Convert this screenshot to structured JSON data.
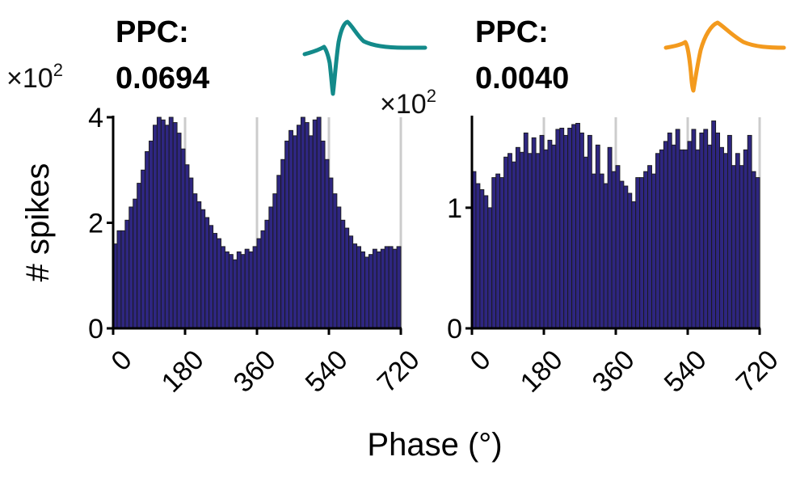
{
  "colors": {
    "bar_fill": "#2E2680",
    "bar_edge": "#1a1a1a",
    "grid": "#cccccc",
    "waveform_left": "#138A8A",
    "waveform_right": "#F39A1E"
  },
  "shared": {
    "xlabel": "Phase (°)",
    "ylabel": "# spikes"
  },
  "panels": [
    {
      "ppc_label": "PPC:",
      "ppc_value": "0.0694",
      "multiplier_base": "×10",
      "multiplier_exp": "2",
      "waveform_icon": "spike-waveform-teal-icon"
    },
    {
      "ppc_label": "PPC:",
      "ppc_value": "0.0040",
      "multiplier_base": "×10",
      "multiplier_exp": "2",
      "waveform_icon": "spike-waveform-orange-icon"
    }
  ],
  "chart_data": [
    {
      "type": "bar",
      "xlabel": "Phase (°)",
      "ylabel": "# spikes",
      "y_multiplier": "×10^2",
      "xlim": [
        0,
        720
      ],
      "ylim": [
        0,
        4
      ],
      "xticks": [
        0,
        180,
        360,
        540,
        720
      ],
      "yticks": [
        0,
        2,
        4
      ],
      "grid_x": [
        180,
        360,
        540,
        720
      ],
      "bin_width": 10,
      "values": [
        1.6,
        1.85,
        1.85,
        2.05,
        2.3,
        2.45,
        2.75,
        3.0,
        3.35,
        3.55,
        3.85,
        4.0,
        3.95,
        3.85,
        4.0,
        3.9,
        3.7,
        3.4,
        3.1,
        2.85,
        2.55,
        2.4,
        2.25,
        2.1,
        1.95,
        1.8,
        1.7,
        1.55,
        1.45,
        1.4,
        1.3,
        1.45,
        1.4,
        1.5,
        1.45,
        1.55,
        1.7,
        1.85,
        2.05,
        2.3,
        2.55,
        2.9,
        3.2,
        3.55,
        3.75,
        3.65,
        3.85,
        4.0,
        3.9,
        3.65,
        3.95,
        4.0,
        3.55,
        3.2,
        2.85,
        2.55,
        2.3,
        2.05,
        1.9,
        1.75,
        1.6,
        1.55,
        1.45,
        1.35,
        1.4,
        1.5,
        1.45,
        1.5,
        1.55,
        1.55,
        1.5,
        1.55
      ]
    },
    {
      "type": "bar",
      "xlabel": "Phase (°)",
      "ylabel": "",
      "y_multiplier": "×10^2",
      "xlim": [
        0,
        720
      ],
      "ylim": [
        0,
        1.75
      ],
      "xticks": [
        0,
        180,
        360,
        540,
        720
      ],
      "yticks": [
        0,
        1
      ],
      "grid_x": [
        180,
        360,
        540,
        720
      ],
      "bin_width": 10,
      "values": [
        1.3,
        1.2,
        1.15,
        1.1,
        1.0,
        1.25,
        1.28,
        1.25,
        1.42,
        1.45,
        1.38,
        1.5,
        1.46,
        1.62,
        1.45,
        1.58,
        1.45,
        1.6,
        1.48,
        1.56,
        1.52,
        1.65,
        1.66,
        1.6,
        1.66,
        1.69,
        1.7,
        1.62,
        1.42,
        1.6,
        1.28,
        1.52,
        1.28,
        1.2,
        1.5,
        1.3,
        1.35,
        1.22,
        1.18,
        1.12,
        1.05,
        1.25,
        1.25,
        1.3,
        1.35,
        1.28,
        1.45,
        1.48,
        1.55,
        1.62,
        1.52,
        1.65,
        1.48,
        1.48,
        1.55,
        1.65,
        1.48,
        1.62,
        1.65,
        1.52,
        1.72,
        1.62,
        1.5,
        1.45,
        1.6,
        1.35,
        1.45,
        1.35,
        1.48,
        1.6,
        1.3,
        1.25
      ]
    }
  ]
}
